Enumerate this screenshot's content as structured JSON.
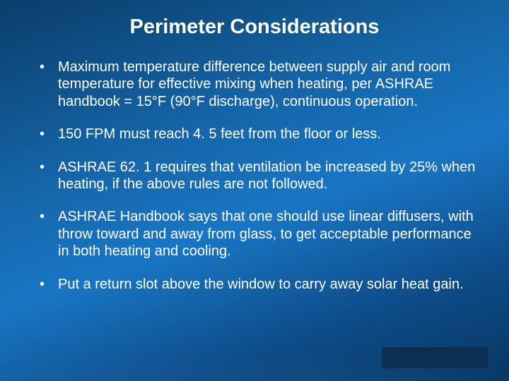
{
  "slide": {
    "title": "Perimeter Considerations",
    "bullets": [
      "Maximum temperature difference between supply air and room temperature for effective mixing when heating, per ASHRAE handbook = 15°F (90°F discharge), continuous operation.",
      "150 FPM must reach 4. 5 feet from the floor or less.",
      "ASHRAE 62. 1 requires that ventilation be increased by 25% when heating, if the above rules are not followed.",
      "ASHRAE Handbook says that one should use linear diffusers, with throw toward and away from glass, to get acceptable performance in both heating and cooling.",
      "Put a return slot above the window to carry away solar heat gain."
    ]
  },
  "colors": {
    "title_color": "#fffde7",
    "text_color": "#ffffff",
    "bg_gradient_start": "#0a3d6b",
    "bg_gradient_mid": "#1976c4",
    "bg_gradient_end": "#083863",
    "corner_box": "#0b2e52"
  },
  "typography": {
    "title_fontsize": 29,
    "body_fontsize": 20,
    "font_family": "Arial"
  }
}
